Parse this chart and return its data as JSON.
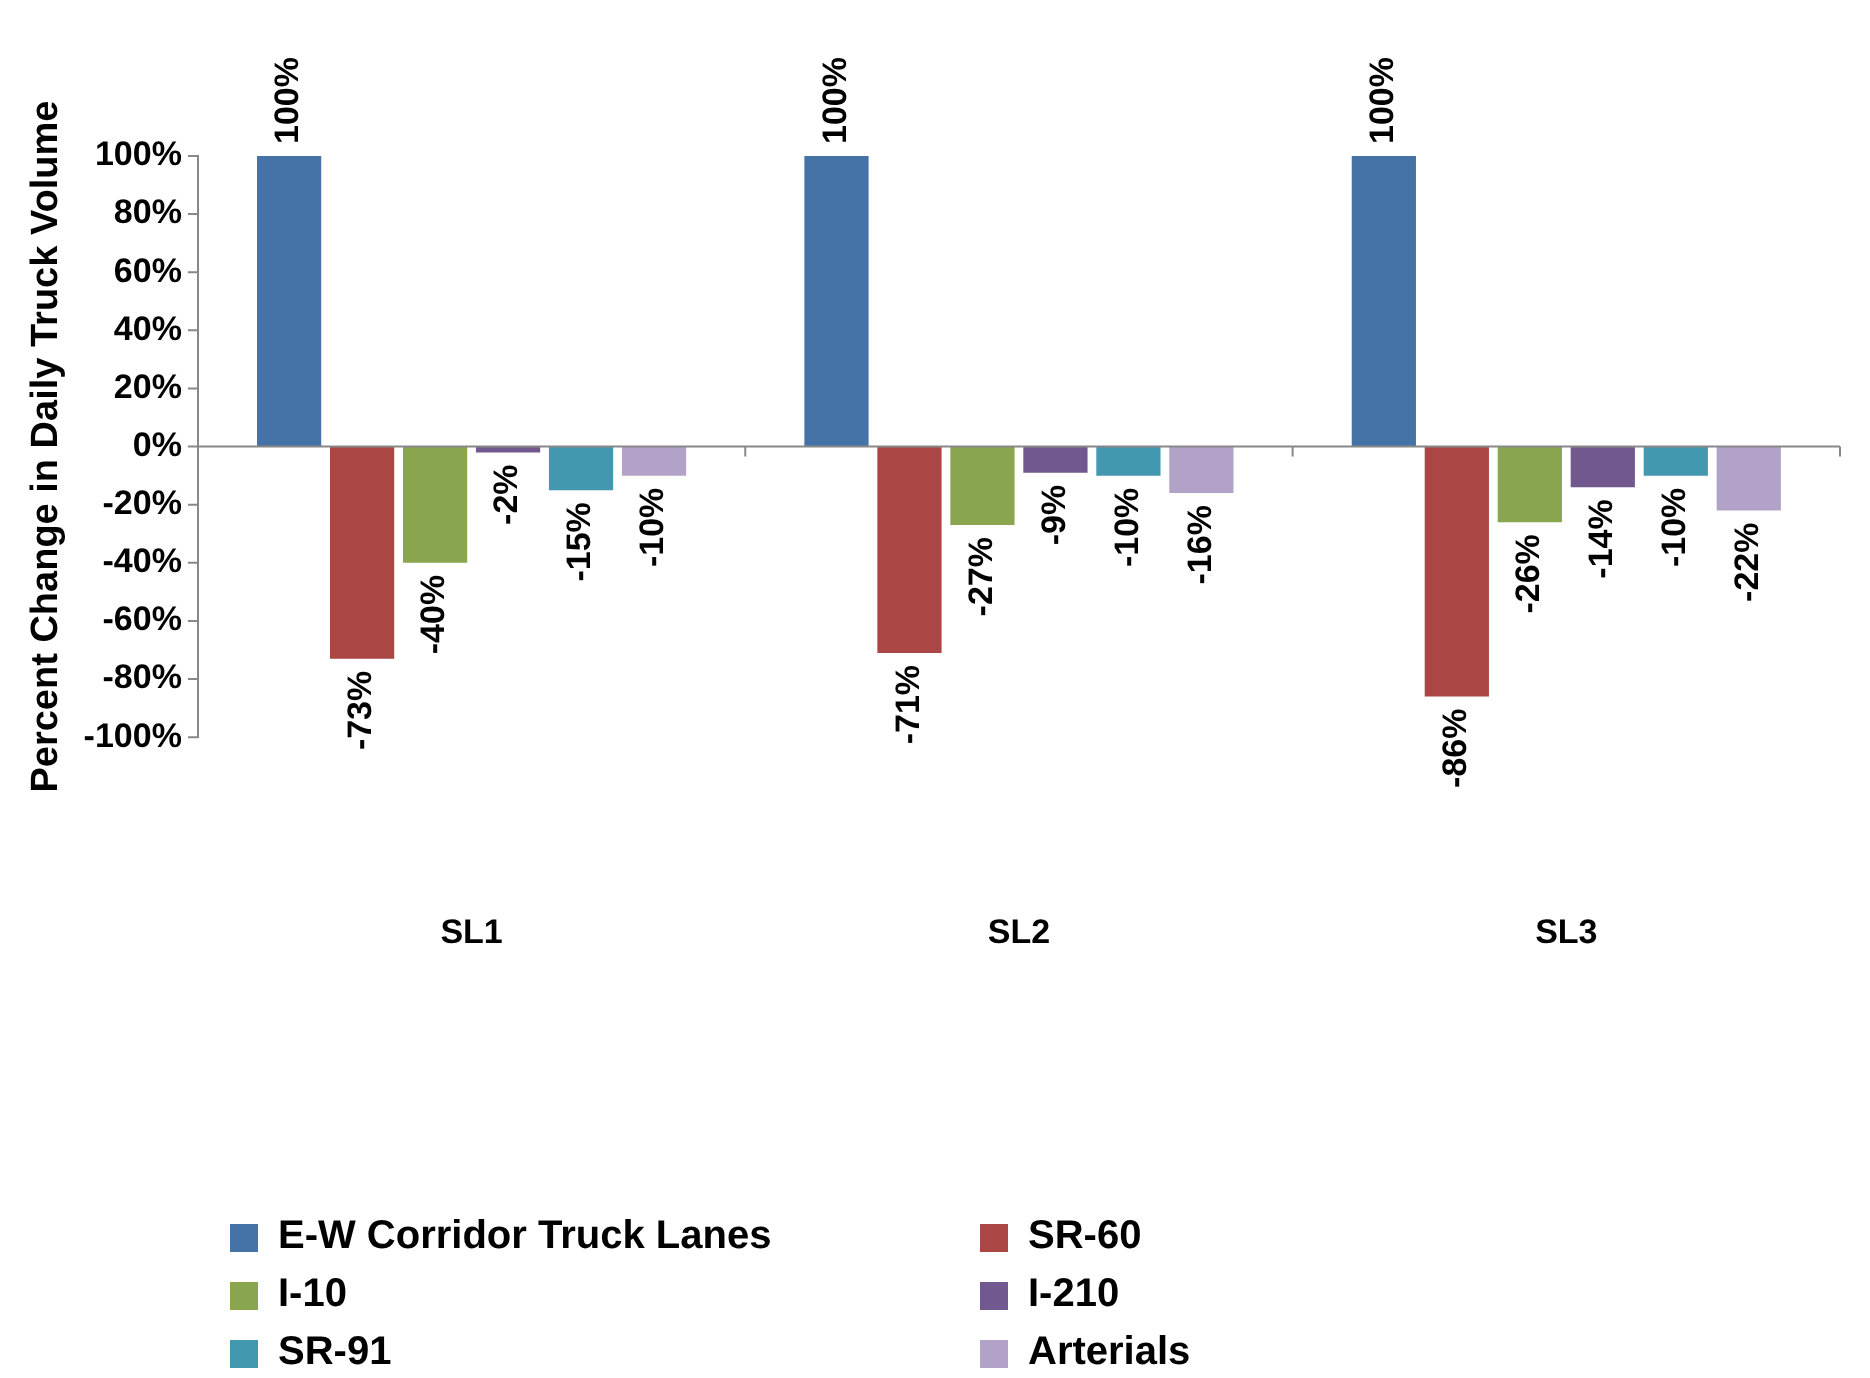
{
  "chart_data": {
    "type": "bar",
    "ylabel": "Percent Change in Daily Truck Volume",
    "categories": [
      "SL1",
      "SL2",
      "SL3"
    ],
    "series": [
      {
        "name": "E-W Corridor Truck Lanes",
        "color": "#4572a7",
        "values": [
          100,
          100,
          100
        ],
        "value_labels": [
          "100%",
          "100%",
          "100%"
        ]
      },
      {
        "name": "SR-60",
        "color": "#aa4643",
        "values": [
          -73,
          -71,
          -86
        ],
        "value_labels": [
          "-73%",
          "-71%",
          "-86%"
        ]
      },
      {
        "name": "I-10",
        "color": "#89a54e",
        "values": [
          -40,
          -27,
          -26
        ],
        "value_labels": [
          "-40%",
          "-27%",
          "-26%"
        ]
      },
      {
        "name": "I-210",
        "color": "#71588f",
        "values": [
          -2,
          -9,
          -14
        ],
        "value_labels": [
          "-2%",
          "-9%",
          "-14%"
        ]
      },
      {
        "name": "SR-91",
        "color": "#4198af",
        "values": [
          -15,
          -10,
          -10
        ],
        "value_labels": [
          "-15%",
          "-10%",
          "-10%"
        ]
      },
      {
        "name": "Arterials",
        "color": "#b3a2c7",
        "values": [
          -10,
          -16,
          -22
        ],
        "value_labels": [
          "-10%",
          "-16%",
          "-22%"
        ]
      }
    ],
    "ylim": [
      -100,
      100
    ],
    "yticks": [
      {
        "value": -100,
        "label": "-100%"
      },
      {
        "value": -80,
        "label": "-80%"
      },
      {
        "value": -60,
        "label": "-60%"
      },
      {
        "value": -40,
        "label": "-40%"
      },
      {
        "value": -20,
        "label": "-20%"
      },
      {
        "value": 0,
        "label": "0%"
      },
      {
        "value": 20,
        "label": "20%"
      },
      {
        "value": 40,
        "label": "40%"
      },
      {
        "value": 60,
        "label": "60%"
      },
      {
        "value": 80,
        "label": "80%"
      },
      {
        "value": 100,
        "label": "100%"
      }
    ],
    "legend": "bottom"
  }
}
